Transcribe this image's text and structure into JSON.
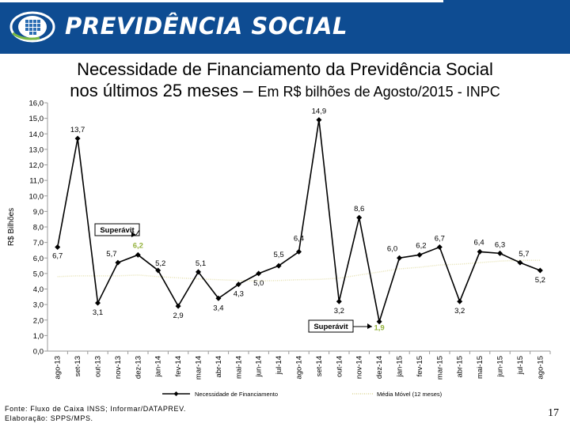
{
  "header": {
    "brand": "PREVIDÊNCIA SOCIAL",
    "bg_color": "#0e4c92",
    "logo": "previdencia-logo-icon"
  },
  "title": {
    "line1": "Necessidade de Financiamento da Previdência Social",
    "line2_main": "nos últimos 25 meses – ",
    "line2_sub": "Em R$ bilhões de Agosto/2015 - INPC"
  },
  "chart_data": {
    "type": "line",
    "ylabel": "R$ Bilhões",
    "ylim": [
      0,
      16
    ],
    "ytick_step": 1,
    "categories": [
      "ago-13",
      "set-13",
      "out-13",
      "nov-13",
      "dez-13",
      "jan-14",
      "fev-14",
      "mar-14",
      "abr-14",
      "mai-14",
      "jun-14",
      "jul-14",
      "ago-14",
      "set-14",
      "out-14",
      "nov-14",
      "dez-14",
      "jan-15",
      "fev-15",
      "mar-15",
      "abr-15",
      "mai-15",
      "jun-15",
      "jul-15",
      "ago-15"
    ],
    "series": [
      {
        "name": "Necessidade de Financiamento",
        "color": "#000000",
        "values": [
          6.7,
          13.7,
          3.1,
          5.7,
          6.2,
          5.2,
          2.9,
          5.1,
          3.4,
          4.3,
          5.0,
          5.5,
          6.4,
          14.9,
          3.2,
          8.6,
          1.9,
          6.0,
          6.2,
          6.7,
          3.2,
          6.4,
          6.3,
          5.7,
          5.2
        ],
        "labels": [
          "6,7",
          "13,7",
          "3,1",
          "5,7",
          "6,2",
          "5,2",
          "2,9",
          "5,1",
          "3,4",
          "4,3",
          "5,0",
          "5,5",
          "6,4",
          "14,9",
          "3,2",
          "8,6",
          "1,9",
          "6,0",
          "6,2",
          "6,7",
          "3,2",
          "6,4",
          "6,3",
          "5,7",
          "5,2"
        ]
      },
      {
        "name": "Média Móvel (12 meses)",
        "color": "#e6e2b4",
        "values": [
          4.8,
          4.85,
          4.85,
          4.85,
          4.9,
          4.8,
          4.72,
          4.65,
          4.6,
          4.55,
          4.52,
          4.55,
          4.6,
          4.62,
          4.7,
          4.9,
          5.1,
          5.3,
          5.4,
          5.55,
          5.6,
          5.7,
          5.8,
          5.85,
          5.85
        ]
      }
    ],
    "annotations": [
      {
        "text": "Superávit",
        "target_index": 4
      },
      {
        "text": "Superávit",
        "target_index": 16
      }
    ],
    "highlight_color": "#94b23c"
  },
  "footer": {
    "source": "Fonte: Fluxo de Caixa INSS; Informar/DATAPREV.",
    "credit": "Elaboração: SPPS/MPS."
  },
  "page_number": "17"
}
